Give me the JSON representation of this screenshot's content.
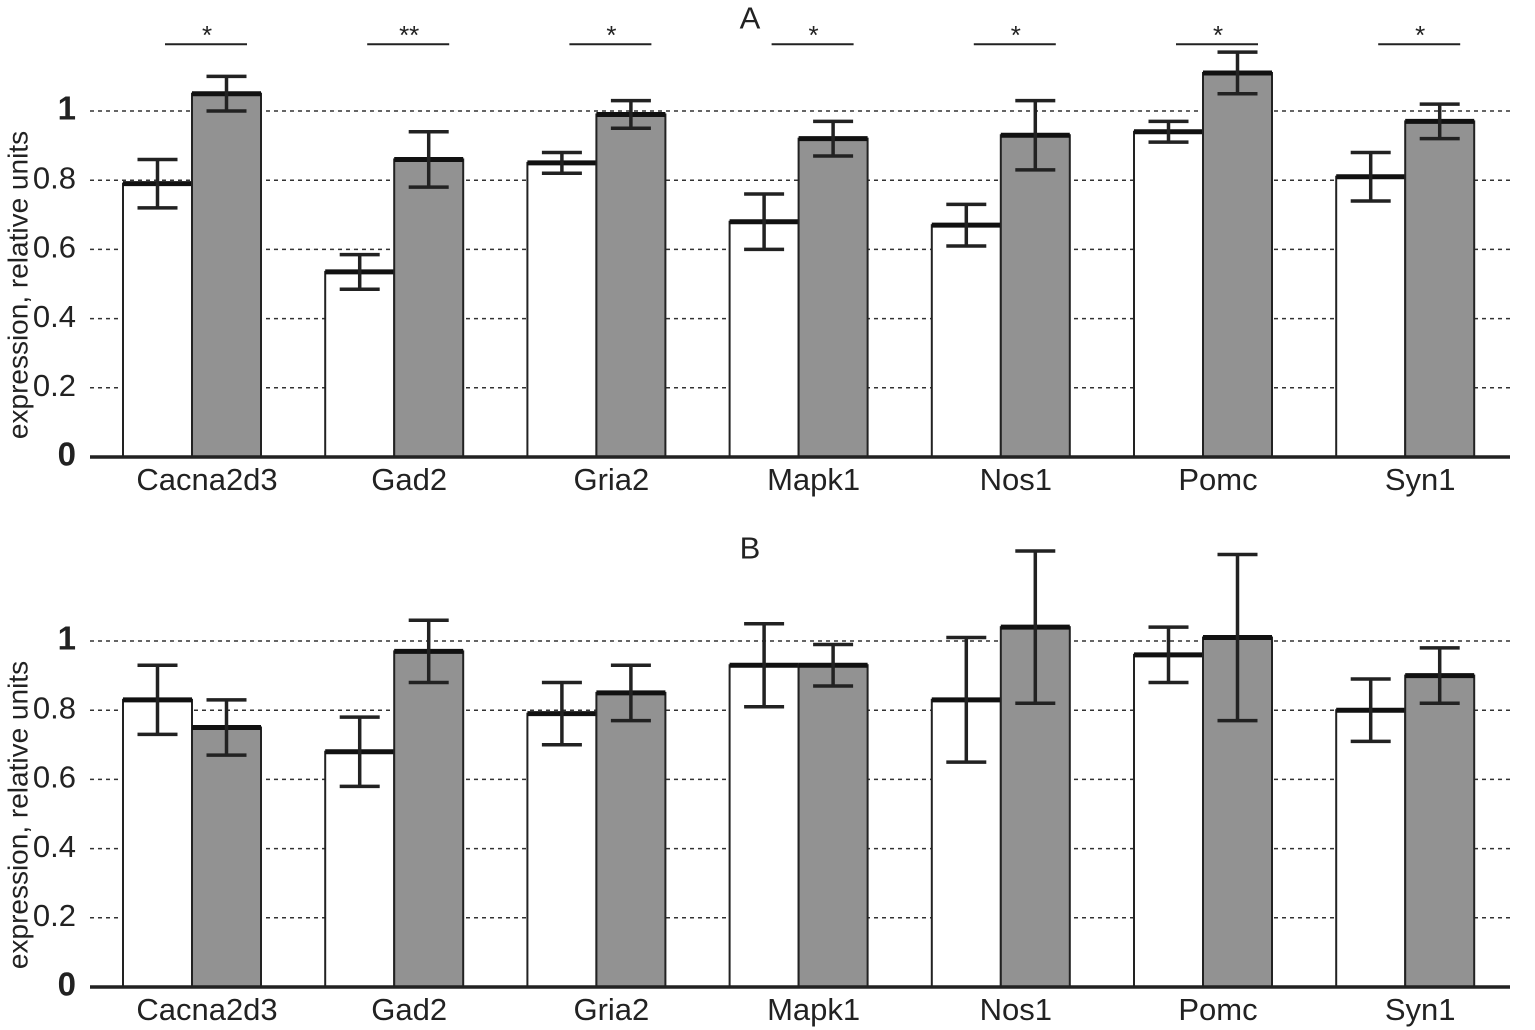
{
  "chart_data": [
    {
      "type": "bar",
      "title": "A",
      "y_label": "expression, relative units",
      "categories": [
        "Cacna2d3",
        "Gad2",
        "Gria2",
        "Mapk1",
        "Nos1",
        "Pomc",
        "Syn1"
      ],
      "series": [
        {
          "color": "#ffffff",
          "values": [
            0.79,
            0.535,
            0.85,
            0.68,
            0.67,
            0.94,
            0.81
          ],
          "errors": [
            0.07,
            0.05,
            0.03,
            0.08,
            0.06,
            0.03,
            0.07
          ]
        },
        {
          "color": "#929292",
          "values": [
            1.05,
            0.86,
            0.99,
            0.92,
            0.93,
            1.11,
            0.97
          ],
          "errors": [
            0.05,
            0.08,
            0.04,
            0.05,
            0.1,
            0.06,
            0.05
          ]
        }
      ],
      "annotations": [
        "*",
        "**",
        "*",
        "*",
        "*",
        "*",
        "*"
      ],
      "ylim": [
        0,
        1.3
      ],
      "yticks": [
        0,
        0.2,
        0.4,
        0.6,
        0.8,
        1
      ],
      "grid": true
    },
    {
      "type": "bar",
      "title": "B",
      "y_label": "expression, relative units",
      "categories": [
        "Cacna2d3",
        "Gad2",
        "Gria2",
        "Mapk1",
        "Nos1",
        "Pomc",
        "Syn1"
      ],
      "series": [
        {
          "color": "#ffffff",
          "values": [
            0.83,
            0.68,
            0.79,
            0.93,
            0.83,
            0.96,
            0.8
          ],
          "errors": [
            0.1,
            0.1,
            0.09,
            0.12,
            0.18,
            0.08,
            0.09
          ]
        },
        {
          "color": "#929292",
          "values": [
            0.75,
            0.97,
            0.85,
            0.93,
            1.04,
            1.01,
            0.9
          ],
          "errors": [
            0.08,
            0.09,
            0.08,
            0.06,
            0.22,
            0.24,
            0.08
          ]
        }
      ],
      "ylim": [
        0,
        1.3
      ],
      "yticks": [
        0,
        0.2,
        0.4,
        0.6,
        0.8,
        1
      ],
      "grid": true
    }
  ]
}
